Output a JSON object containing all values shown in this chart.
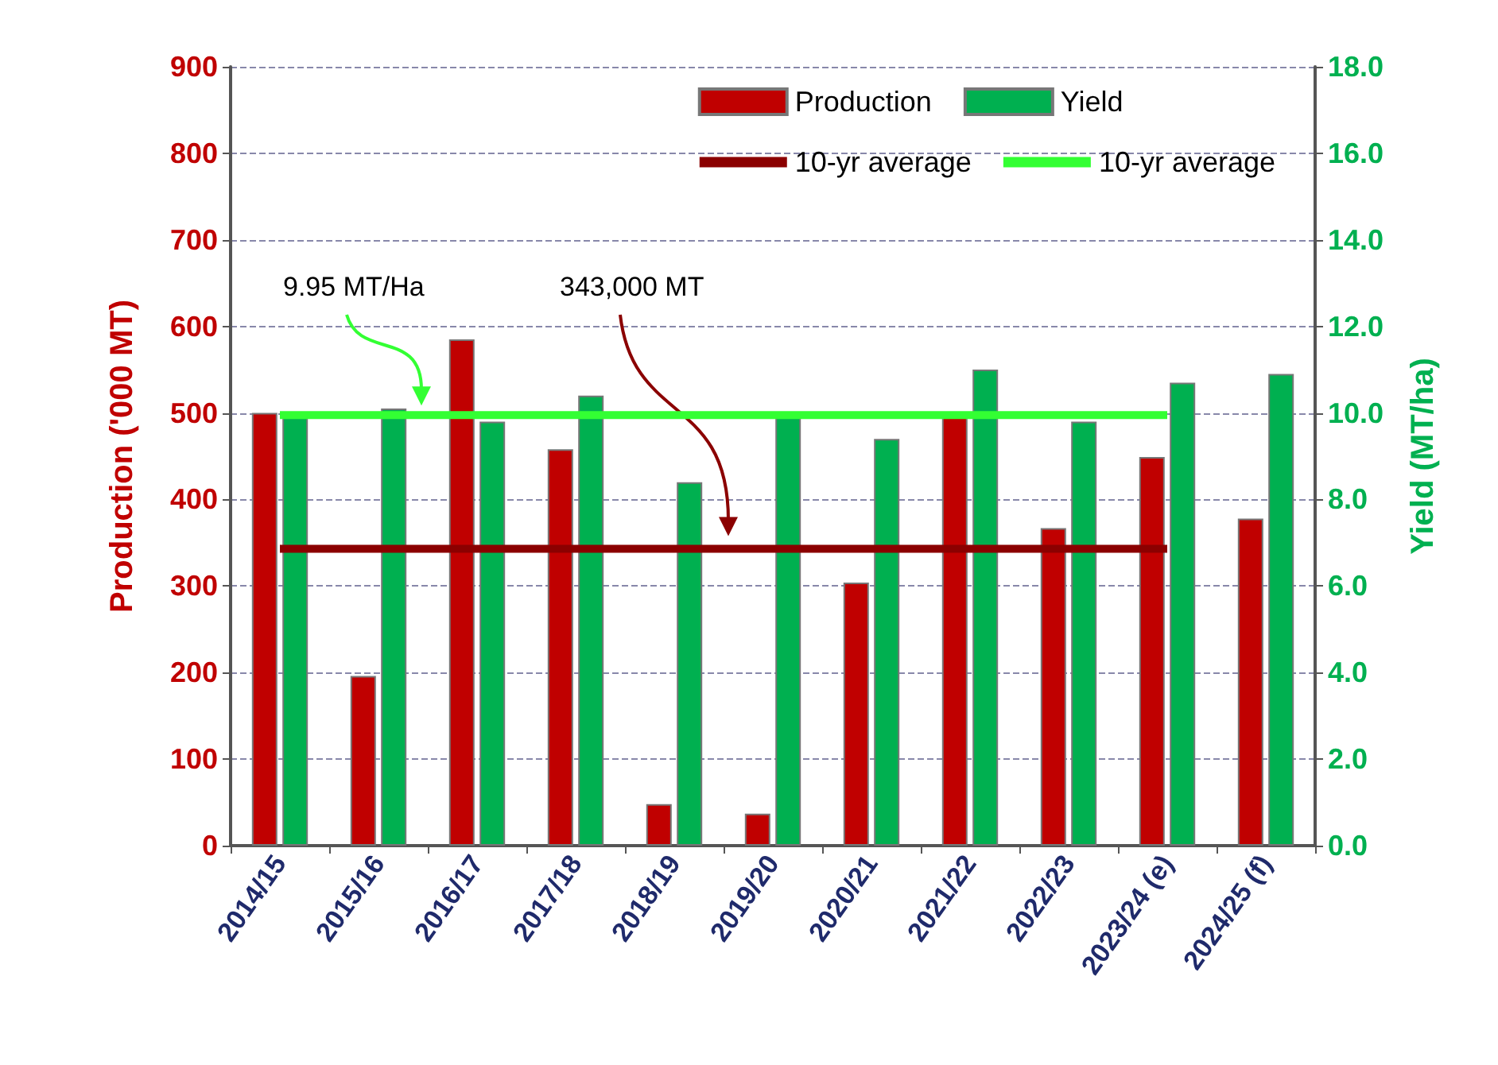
{
  "chart_data": {
    "type": "bar",
    "ylabel": "Production ('000 MT)",
    "y2label": "Yield (MT/ha)",
    "categories": [
      "2014/15",
      "2015/16",
      "2016/17",
      "2017/18",
      "2018/19",
      "2019/20",
      "2020/21",
      "2021/22",
      "2022/23",
      "2023/24 (e)",
      "2024/25 (f)"
    ],
    "series": [
      {
        "name": "Production",
        "color": "#c00000",
        "values": [
          500,
          196,
          585,
          458,
          48,
          37,
          304,
          495,
          367,
          449,
          378
        ]
      },
      {
        "name": "Yield",
        "axis": "y2",
        "color": "#00b050",
        "values": [
          9.9,
          10.1,
          9.8,
          10.4,
          8.4,
          9.9,
          9.4,
          11.0,
          9.8,
          10.7,
          10.9
        ]
      },
      {
        "name": "10-yr average",
        "type": "line",
        "color": "#8b0000",
        "values": [
          343,
          343,
          343,
          343,
          343,
          343,
          343,
          343,
          343,
          343,
          null
        ]
      },
      {
        "name": "10-yr average",
        "type": "line",
        "axis": "y2",
        "color": "#33ff33",
        "values": [
          9.95,
          9.95,
          9.95,
          9.95,
          9.95,
          9.95,
          9.95,
          9.95,
          9.95,
          9.95,
          null
        ]
      }
    ],
    "ylim": [
      0,
      900
    ],
    "yticks": [
      0,
      100,
      200,
      300,
      400,
      500,
      600,
      700,
      800,
      900
    ],
    "y2lim": [
      0,
      18
    ],
    "y2ticks": [
      {
        "value": 0,
        "label": "0.0"
      },
      {
        "value": 2,
        "label": "2.0"
      },
      {
        "value": 4,
        "label": "4.0"
      },
      {
        "value": 6,
        "label": "6.0"
      },
      {
        "value": 8,
        "label": "8.0"
      },
      {
        "value": 10,
        "label": "10.0"
      },
      {
        "value": 12,
        "label": "12.0"
      },
      {
        "value": 14,
        "label": "14.0"
      },
      {
        "value": 16,
        "label": "16.0"
      },
      {
        "value": 18,
        "label": "18.0"
      }
    ],
    "annotations": [
      "9.95 MT/Ha",
      "343,000 MT"
    ],
    "grid": "y",
    "legend": "top right",
    "marker": "none",
    "line_style": "solid"
  }
}
